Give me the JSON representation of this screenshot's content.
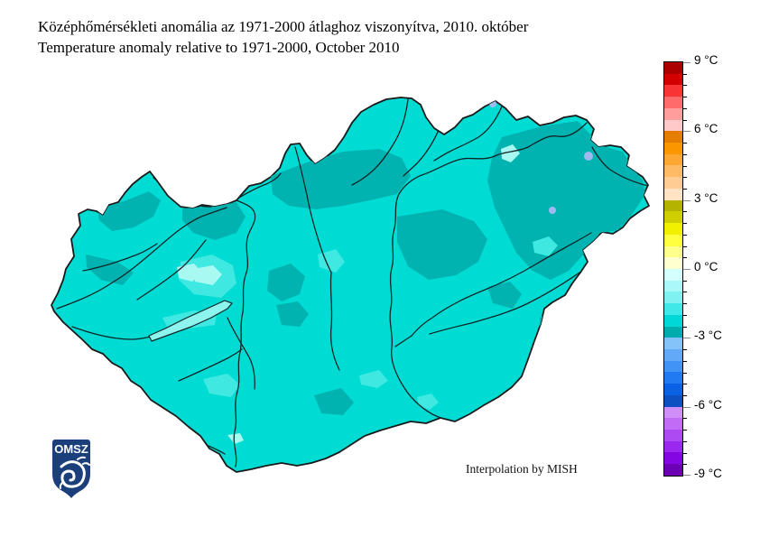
{
  "title": {
    "line1": "Középhőmérsékleti anomália az 1971-2000 átlaghoz viszonyítva, 2010. október",
    "line2": "Temperature anomaly relative to 1971-2000, October 2010"
  },
  "attribution": "Interpolation by MISH",
  "logo": {
    "text": "OMSZ"
  },
  "colorbar": {
    "unit": "°C",
    "max_c": 9,
    "min_c": -9,
    "segment_step_c": 0.5,
    "label_step_c": 3,
    "labels_top_to_bottom": [
      "9 °C",
      "6 °C",
      "3 °C",
      "0 °C",
      "-3 °C",
      "-6 °C",
      "-9 °C"
    ],
    "segments_top_to_bottom": [
      "#aa0000",
      "#d40000",
      "#f93434",
      "#ff6a6a",
      "#ff9c9c",
      "#ffc9c9",
      "#e47d00",
      "#fb9500",
      "#ffa733",
      "#ffba66",
      "#ffcd94",
      "#ffe3c2",
      "#b4b400",
      "#cfcf00",
      "#f0f000",
      "#ffff40",
      "#ffff8c",
      "#ffffcf",
      "#d4ffff",
      "#aaf8f8",
      "#7ff1f1",
      "#40e8e8",
      "#00d8d8",
      "#00acac",
      "#84c2fa",
      "#62a9f8",
      "#4293f6",
      "#217af2",
      "#0a61e4",
      "#0c50c2",
      "#d08ef8",
      "#c06cf6",
      "#ae4af3",
      "#9a28ef",
      "#8406e2",
      "#6b00b4"
    ]
  },
  "map": {
    "region": "Hungary",
    "dominant_anomaly_band_c": "-2 to -2.5",
    "palette": {
      "base": "#00dcd4",
      "dark_patch": "#00b2b0",
      "light_patch": "#3fe9e2",
      "pale_patch": "#a9f9f3",
      "lake_fill": "#8df4ee",
      "cold_spot_dot": "#9db9f0",
      "border": "#1a1a1a",
      "river": "#0c2626",
      "logo_navy": "#1b3f7b"
    }
  }
}
